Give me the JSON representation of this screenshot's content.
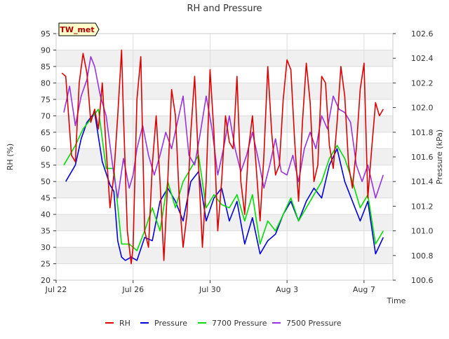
{
  "chart_data": {
    "type": "line",
    "title": "RH and Pressure",
    "xlabel": "Time",
    "ylabel_left": "RH (%)",
    "ylabel_right": "Pressure (kPa)",
    "site_tag": "TW_met",
    "xlim": [
      0,
      17.5
    ],
    "x_ticks": [
      {
        "x": 0,
        "label": "Jul 22"
      },
      {
        "x": 4,
        "label": "Jul 26"
      },
      {
        "x": 8,
        "label": "Jul 30"
      },
      {
        "x": 12,
        "label": "Aug 3"
      },
      {
        "x": 16,
        "label": "Aug 7"
      }
    ],
    "ylim_left": [
      20,
      95
    ],
    "yticks_left": [
      20,
      25,
      30,
      35,
      40,
      45,
      50,
      55,
      60,
      65,
      70,
      75,
      80,
      85,
      90,
      95
    ],
    "ylim_right": [
      100.6,
      102.6
    ],
    "yticks_right": [
      100.6,
      100.8,
      101.0,
      101.2,
      101.4,
      101.6,
      101.8,
      102.0,
      102.2,
      102.4,
      102.6
    ],
    "grid": true,
    "legend_position": "bottom",
    "series": [
      {
        "name": "RH",
        "axis": "left",
        "color": "#dd0000",
        "x": [
          0.3,
          0.5,
          0.8,
          1.0,
          1.2,
          1.4,
          1.6,
          1.8,
          2.0,
          2.2,
          2.4,
          2.6,
          2.8,
          3.0,
          3.2,
          3.4,
          3.5,
          3.7,
          3.9,
          4.0,
          4.2,
          4.4,
          4.6,
          4.8,
          5.0,
          5.2,
          5.4,
          5.6,
          5.8,
          6.0,
          6.2,
          6.4,
          6.6,
          6.8,
          7.0,
          7.2,
          7.4,
          7.6,
          7.8,
          8.0,
          8.2,
          8.4,
          8.6,
          8.8,
          9.0,
          9.2,
          9.4,
          9.6,
          9.8,
          10.0,
          10.2,
          10.4,
          10.6,
          10.8,
          11.0,
          11.2,
          11.4,
          11.6,
          11.8,
          12.0,
          12.2,
          12.4,
          12.6,
          12.8,
          13.0,
          13.2,
          13.4,
          13.6,
          13.8,
          14.0,
          14.2,
          14.4,
          14.6,
          14.8,
          15.0,
          15.2,
          15.4,
          15.6,
          15.8,
          16.0,
          16.2,
          16.4,
          16.6,
          16.8,
          17.0
        ],
        "values": [
          83,
          82,
          58,
          56,
          80,
          89,
          83,
          68,
          72,
          66,
          80,
          60,
          42,
          52,
          70,
          90,
          70,
          35,
          25,
          30,
          75,
          88,
          35,
          30,
          55,
          70,
          50,
          26,
          50,
          78,
          70,
          45,
          30,
          40,
          65,
          82,
          55,
          30,
          50,
          84,
          65,
          35,
          50,
          70,
          62,
          60,
          82,
          50,
          40,
          60,
          70,
          54,
          38,
          58,
          85,
          65,
          52,
          55,
          75,
          87,
          84,
          62,
          44,
          68,
          86,
          74,
          50,
          55,
          82,
          80,
          61,
          54,
          68,
          85,
          76,
          55,
          48,
          60,
          78,
          86,
          45,
          60,
          74,
          70,
          72
        ]
      },
      {
        "name": "Pressure",
        "axis": "left",
        "color": "#0000dd",
        "x": [
          0.5,
          1.0,
          1.3,
          1.6,
          2.0,
          2.4,
          2.8,
          3.0,
          3.2,
          3.4,
          3.6,
          3.9,
          4.2,
          4.6,
          5.0,
          5.4,
          5.8,
          6.2,
          6.6,
          7.0,
          7.4,
          7.8,
          8.2,
          8.6,
          9.0,
          9.4,
          9.8,
          10.2,
          10.6,
          11.0,
          11.4,
          11.8,
          12.2,
          12.6,
          13.0,
          13.4,
          13.8,
          14.2,
          14.6,
          15.0,
          15.4,
          15.8,
          16.2,
          16.6,
          17.0
        ],
        "values": [
          50,
          55,
          63,
          68,
          71,
          56,
          49,
          47,
          32,
          27,
          26,
          27,
          26,
          33,
          32,
          44,
          48,
          44,
          38,
          50,
          53,
          38,
          45,
          48,
          38,
          44,
          31,
          39,
          28,
          32,
          34,
          40,
          44,
          38,
          44,
          48,
          45,
          55,
          60,
          50,
          44,
          38,
          44,
          28,
          33
        ]
      },
      {
        "name": "7700 Pressure",
        "axis": "left",
        "color": "#00dd00",
        "x": [
          0.4,
          1.0,
          1.4,
          1.8,
          2.2,
          2.6,
          3.0,
          3.4,
          3.8,
          4.2,
          4.6,
          5.0,
          5.4,
          5.8,
          6.2,
          6.6,
          7.0,
          7.4,
          7.8,
          8.2,
          8.6,
          9.0,
          9.4,
          9.8,
          10.2,
          10.6,
          11.0,
          11.4,
          11.8,
          12.2,
          12.6,
          13.0,
          13.4,
          13.8,
          14.2,
          14.6,
          15.0,
          15.4,
          15.8,
          16.2,
          16.6,
          17.0
        ],
        "values": [
          55,
          61,
          66,
          69,
          72,
          54,
          54,
          31,
          31,
          29,
          35,
          42,
          35,
          50,
          42,
          50,
          54,
          58,
          42,
          46,
          43,
          42,
          46,
          38,
          46,
          31,
          38,
          35,
          40,
          45,
          38,
          42,
          46,
          50,
          57,
          61,
          57,
          50,
          42,
          46,
          31,
          35
        ]
      },
      {
        "name": "7500 Pressure",
        "axis": "left",
        "color": "#9933dd",
        "x": [
          0.4,
          0.7,
          1.0,
          1.3,
          1.6,
          1.8,
          2.0,
          2.3,
          2.6,
          3.0,
          3.2,
          3.5,
          3.8,
          4.0,
          4.2,
          4.5,
          4.8,
          5.1,
          5.4,
          5.7,
          6.0,
          6.3,
          6.6,
          6.9,
          7.2,
          7.5,
          7.8,
          8.1,
          8.4,
          8.7,
          9.0,
          9.3,
          9.6,
          9.9,
          10.2,
          10.5,
          10.8,
          11.1,
          11.4,
          11.7,
          12.0,
          12.3,
          12.6,
          12.9,
          13.2,
          13.5,
          13.8,
          14.1,
          14.4,
          14.7,
          15.0,
          15.3,
          15.6,
          15.9,
          16.2,
          16.6,
          17.0
        ],
        "values": [
          71,
          79,
          67,
          76,
          81,
          88,
          85,
          76,
          70,
          52,
          45,
          57,
          48,
          52,
          60,
          67,
          58,
          52,
          58,
          65,
          60,
          68,
          76,
          58,
          55,
          65,
          76,
          66,
          52,
          60,
          70,
          60,
          53,
          58,
          65,
          57,
          48,
          55,
          63,
          53,
          52,
          58,
          50,
          60,
          65,
          60,
          70,
          66,
          76,
          72,
          71,
          68,
          55,
          50,
          55,
          45,
          52
        ]
      }
    ]
  }
}
